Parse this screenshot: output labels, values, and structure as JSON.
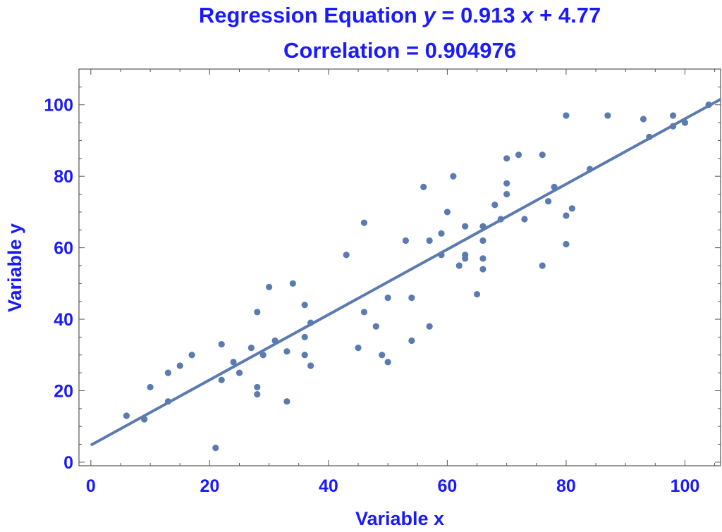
{
  "chart_data": {
    "type": "scatter",
    "title_lines": [
      {
        "prefix": "Regression Equation ",
        "var_y": "y",
        "mid": " = 0.913 ",
        "var_x": "x",
        "suffix": " + 4.77"
      },
      {
        "text": "Correlation = 0.904976"
      }
    ],
    "xlabel": "Variable x",
    "ylabel": "Variable y",
    "xlim": [
      -2,
      106
    ],
    "ylim": [
      -1,
      110
    ],
    "xticks": [
      0,
      20,
      40,
      60,
      80,
      100
    ],
    "yticks": [
      0,
      20,
      40,
      60,
      80,
      100
    ],
    "regression": {
      "slope": 0.913,
      "intercept": 4.77
    },
    "point_color": "#5b7bb0",
    "text_color": "#1a1aff",
    "points": [
      [
        6,
        13
      ],
      [
        9,
        12
      ],
      [
        10,
        21
      ],
      [
        13,
        17
      ],
      [
        13,
        25
      ],
      [
        15,
        27
      ],
      [
        17,
        30
      ],
      [
        21,
        4
      ],
      [
        22,
        23
      ],
      [
        22,
        33
      ],
      [
        24,
        28
      ],
      [
        25,
        25
      ],
      [
        27,
        32
      ],
      [
        28,
        19
      ],
      [
        28,
        21
      ],
      [
        28,
        42
      ],
      [
        29,
        30
      ],
      [
        30,
        49
      ],
      [
        31,
        34
      ],
      [
        33,
        17
      ],
      [
        33,
        31
      ],
      [
        34,
        50
      ],
      [
        36,
        30
      ],
      [
        36,
        35
      ],
      [
        36,
        44
      ],
      [
        37,
        27
      ],
      [
        37,
        39
      ],
      [
        43,
        58
      ],
      [
        45,
        32
      ],
      [
        46,
        42
      ],
      [
        46,
        67
      ],
      [
        48,
        38
      ],
      [
        49,
        30
      ],
      [
        50,
        28
      ],
      [
        50,
        46
      ],
      [
        53,
        62
      ],
      [
        54,
        34
      ],
      [
        54,
        46
      ],
      [
        56,
        77
      ],
      [
        57,
        38
      ],
      [
        57,
        62
      ],
      [
        59,
        58
      ],
      [
        59,
        64
      ],
      [
        60,
        70
      ],
      [
        61,
        80
      ],
      [
        62,
        55
      ],
      [
        63,
        57
      ],
      [
        63,
        58
      ],
      [
        63,
        66
      ],
      [
        65,
        47
      ],
      [
        66,
        54
      ],
      [
        66,
        57
      ],
      [
        66,
        62
      ],
      [
        66,
        66
      ],
      [
        68,
        72
      ],
      [
        69,
        68
      ],
      [
        70,
        75
      ],
      [
        70,
        78
      ],
      [
        70,
        85
      ],
      [
        72,
        86
      ],
      [
        73,
        68
      ],
      [
        76,
        55
      ],
      [
        76,
        86
      ],
      [
        77,
        73
      ],
      [
        78,
        77
      ],
      [
        80,
        61
      ],
      [
        80,
        69
      ],
      [
        80,
        97
      ],
      [
        81,
        71
      ],
      [
        84,
        82
      ],
      [
        87,
        97
      ],
      [
        93,
        96
      ],
      [
        94,
        91
      ],
      [
        98,
        94
      ],
      [
        98,
        97
      ],
      [
        100,
        95
      ],
      [
        104,
        100
      ]
    ]
  }
}
